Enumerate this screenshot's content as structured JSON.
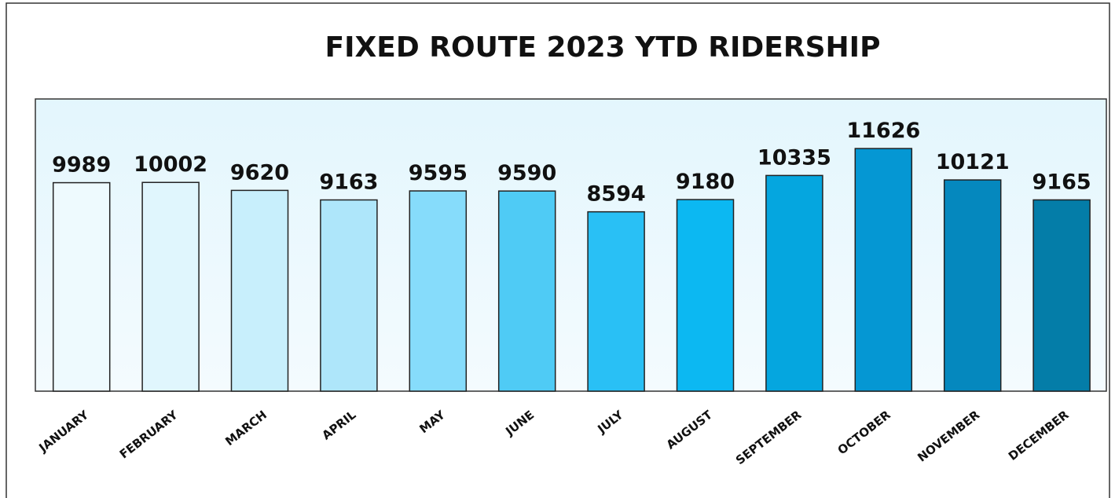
{
  "chart_data": {
    "type": "bar",
    "title": "FIXED ROUTE 2023 YTD RIDERSHIP",
    "categories": [
      "JANUARY",
      "FEBRUARY",
      "MARCH",
      "APRIL",
      "MAY",
      "JUNE",
      "JULY",
      "AUGUST",
      "SEPTEMBER",
      "OCTOBER",
      "NOVEMBER",
      "DECEMBER"
    ],
    "values": [
      9989,
      10002,
      9620,
      9163,
      9595,
      9590,
      8594,
      9180,
      10335,
      11626,
      10121,
      9165
    ],
    "colors": [
      "#eefafe",
      "#e0f6fd",
      "#c8effc",
      "#aee6fa",
      "#86dcfb",
      "#4fcbf5",
      "#29c0f5",
      "#0cb8f2",
      "#05a6df",
      "#0597d3",
      "#0588be",
      "#047da8"
    ],
    "ylim": [
      0,
      14000
    ]
  }
}
